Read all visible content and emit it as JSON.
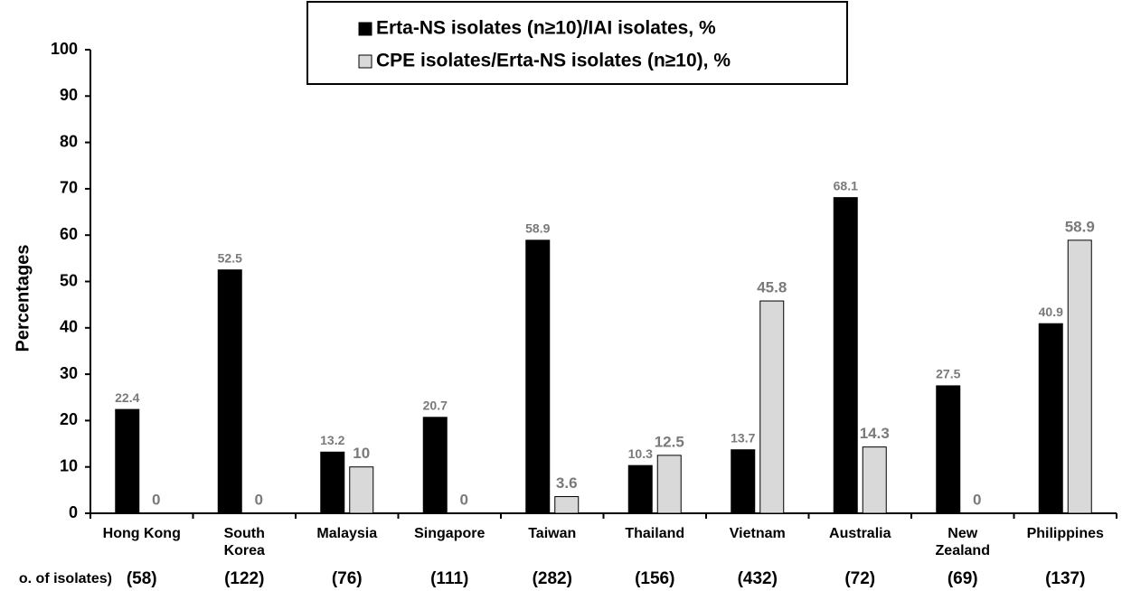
{
  "chart_data": {
    "type": "bar",
    "y_label": "Percentages",
    "categories": [
      "Hong Kong",
      "South Korea",
      "Malaysia",
      "Singapore",
      "Taiwan",
      "Thailand",
      "Vietnam",
      "Australia",
      "New Zealand",
      "Philippines"
    ],
    "counts_label": "o. of isolates)",
    "counts": [
      "(58)",
      "(122)",
      "(76)",
      "(111)",
      "(282)",
      "(156)",
      "(432)",
      "(72)",
      "(69)",
      "(137)"
    ],
    "series": [
      {
        "name": "Erta-NS isolates (n≥10)/IAI isolates, %",
        "color": "#000000",
        "values": [
          22.4,
          52.5,
          13.2,
          20.7,
          58.9,
          10.3,
          13.7,
          68.1,
          27.5,
          40.9
        ]
      },
      {
        "name": "CPE isolates/Erta-NS isolates (n≥10), %",
        "color": "#d9d9d9",
        "values": [
          0,
          0,
          10,
          0,
          3.6,
          12.5,
          45.8,
          14.3,
          0,
          58.9
        ]
      }
    ],
    "ylim": [
      0,
      100
    ],
    "yticks": [
      0,
      10,
      20,
      30,
      40,
      50,
      60,
      70,
      80,
      90,
      100
    ],
    "grid": false,
    "legend": "top"
  }
}
